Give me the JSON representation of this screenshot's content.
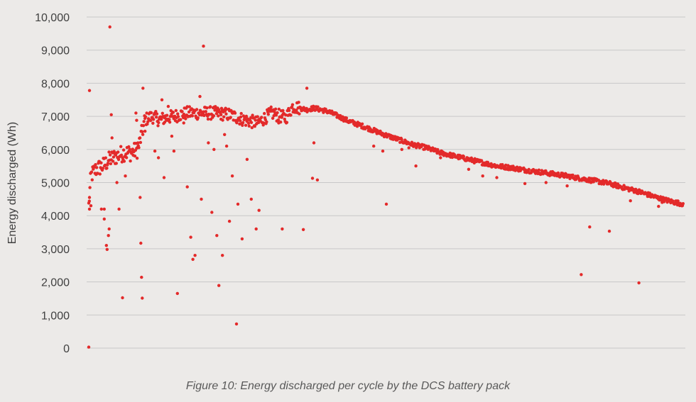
{
  "caption": "Figure 10: Energy discharged per cycle by the DCS battery pack",
  "colors": {
    "background": "#ECEAE8",
    "grid": "#C8C8C8",
    "point": "#E32A2A",
    "text": "#404040"
  },
  "chart_data": {
    "type": "scatter",
    "title": "",
    "xlabel": "",
    "ylabel": "Energy discharged (Wh)",
    "ylim": [
      0,
      10000
    ],
    "yticks": [
      "0",
      "1,000",
      "2,000",
      "3,000",
      "4,000",
      "5,000",
      "6,000",
      "7,000",
      "8,000",
      "9,000",
      "10,000"
    ],
    "grid": true,
    "legend": "none",
    "x_axis_labels": false,
    "series": [
      {
        "color": "#E32A2A",
        "trend_points": [
          [
            0,
            4300
          ],
          [
            3,
            5200
          ],
          [
            10,
            5400
          ],
          [
            20,
            5500
          ],
          [
            30,
            5700
          ],
          [
            40,
            5800
          ],
          [
            50,
            5900
          ],
          [
            60,
            5900
          ],
          [
            70,
            6000
          ],
          [
            80,
            6900
          ],
          [
            90,
            7000
          ],
          [
            100,
            6900
          ],
          [
            120,
            7000
          ],
          [
            140,
            7100
          ],
          [
            160,
            7100
          ],
          [
            180,
            7100
          ],
          [
            200,
            7050
          ],
          [
            220,
            6900
          ],
          [
            240,
            6800
          ],
          [
            260,
            7100
          ],
          [
            280,
            6950
          ],
          [
            290,
            7300
          ],
          [
            300,
            7250
          ],
          [
            310,
            7200
          ],
          [
            320,
            7250
          ],
          [
            330,
            7200
          ],
          [
            340,
            7150
          ],
          [
            350,
            7050
          ],
          [
            370,
            6850
          ],
          [
            390,
            6700
          ],
          [
            420,
            6450
          ],
          [
            440,
            6300
          ],
          [
            460,
            6150
          ],
          [
            480,
            6050
          ],
          [
            500,
            5900
          ],
          [
            520,
            5800
          ],
          [
            540,
            5700
          ],
          [
            560,
            5600
          ],
          [
            580,
            5500
          ],
          [
            600,
            5450
          ],
          [
            620,
            5380
          ],
          [
            640,
            5320
          ],
          [
            660,
            5260
          ],
          [
            680,
            5200
          ],
          [
            700,
            5120
          ],
          [
            720,
            5050
          ],
          [
            740,
            4970
          ],
          [
            760,
            4850
          ],
          [
            780,
            4740
          ],
          [
            800,
            4600
          ],
          [
            815,
            4500
          ],
          [
            830,
            4420
          ],
          [
            845,
            4350
          ]
        ],
        "outliers": [
          [
            1,
            7780
          ],
          [
            0,
            30
          ],
          [
            1,
            4550
          ],
          [
            1,
            4200
          ],
          [
            3,
            4300
          ],
          [
            18,
            4200
          ],
          [
            22,
            4200
          ],
          [
            22,
            3900
          ],
          [
            25,
            3100
          ],
          [
            26,
            2980
          ],
          [
            28,
            3400
          ],
          [
            29,
            3600
          ],
          [
            30,
            9700
          ],
          [
            32,
            7050
          ],
          [
            33,
            6350
          ],
          [
            40,
            5000
          ],
          [
            43,
            4200
          ],
          [
            48,
            1520
          ],
          [
            52,
            5200
          ],
          [
            67,
            7100
          ],
          [
            68,
            6880
          ],
          [
            70,
            6200
          ],
          [
            73,
            4550
          ],
          [
            74,
            3170
          ],
          [
            75,
            2140
          ],
          [
            76,
            1510
          ],
          [
            77,
            7850
          ],
          [
            80,
            6550
          ],
          [
            94,
            5950
          ],
          [
            99,
            5750
          ],
          [
            104,
            7500
          ],
          [
            107,
            5150
          ],
          [
            113,
            7300
          ],
          [
            118,
            6400
          ],
          [
            121,
            5950
          ],
          [
            126,
            1650
          ],
          [
            135,
            6800
          ],
          [
            140,
            4870
          ],
          [
            145,
            3350
          ],
          [
            148,
            2680
          ],
          [
            151,
            2800
          ],
          [
            158,
            7600
          ],
          [
            160,
            4500
          ],
          [
            163,
            9120
          ],
          [
            170,
            6200
          ],
          [
            175,
            4100
          ],
          [
            178,
            6000
          ],
          [
            182,
            3400
          ],
          [
            185,
            1890
          ],
          [
            188,
            7050
          ],
          [
            190,
            2800
          ],
          [
            193,
            6450
          ],
          [
            196,
            6100
          ],
          [
            200,
            3830
          ],
          [
            204,
            5200
          ],
          [
            210,
            730
          ],
          [
            212,
            4350
          ],
          [
            218,
            3300
          ],
          [
            225,
            5700
          ],
          [
            231,
            4500
          ],
          [
            238,
            3600
          ],
          [
            242,
            4160
          ],
          [
            270,
            6800
          ],
          [
            275,
            3600
          ],
          [
            305,
            3580
          ],
          [
            310,
            7850
          ],
          [
            318,
            5130
          ],
          [
            320,
            6200
          ],
          [
            325,
            5080
          ],
          [
            405,
            6100
          ],
          [
            418,
            5950
          ],
          [
            423,
            4350
          ],
          [
            445,
            6000
          ],
          [
            455,
            6050
          ],
          [
            465,
            5500
          ],
          [
            500,
            5750
          ],
          [
            540,
            5400
          ],
          [
            560,
            5200
          ],
          [
            580,
            5150
          ],
          [
            620,
            4970
          ],
          [
            650,
            5000
          ],
          [
            680,
            4900
          ],
          [
            700,
            2220
          ],
          [
            712,
            3660
          ],
          [
            740,
            3530
          ],
          [
            770,
            4450
          ],
          [
            782,
            1970
          ],
          [
            810,
            4280
          ],
          [
            815,
            4400
          ]
        ]
      }
    ]
  }
}
